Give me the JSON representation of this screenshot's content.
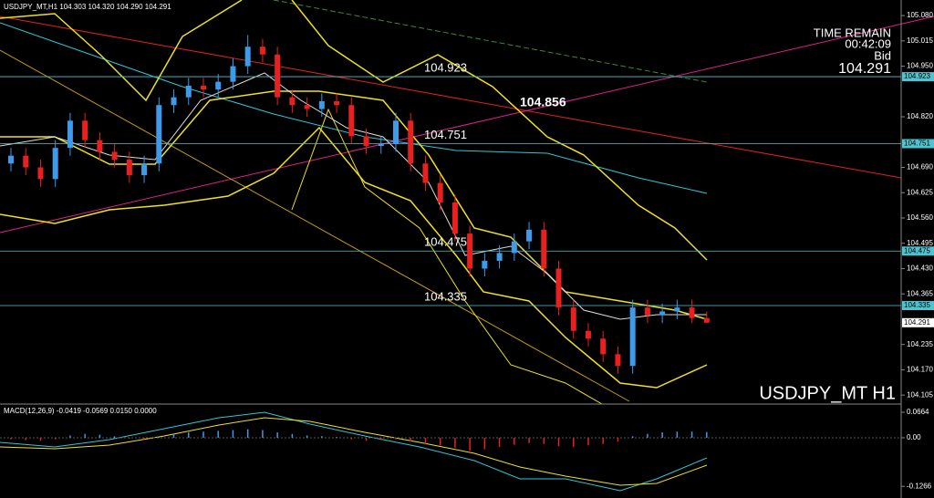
{
  "chart_data": [
    {
      "type": "candlestick",
      "title": "USDJPY_MT,H1  104.303 104.320 104.290 104.291",
      "time_remain_label": "TIME REMAIN",
      "time_remain": "00:42:09",
      "bid_label": "Bid",
      "bid": 104.291,
      "symbol_label": "USDJPY_MT H1",
      "annotation": 104.856,
      "levels": [
        104.923,
        104.751,
        104.475,
        104.335
      ],
      "up_color": "#3d9be9",
      "down_color": "#e8201f",
      "level_color": "#4fc3cf",
      "open": [
        104.7,
        104.72,
        104.69,
        104.66,
        104.74,
        104.81,
        104.76,
        104.73,
        104.71,
        104.67,
        104.7,
        104.85,
        104.87,
        104.9,
        104.89,
        104.91,
        104.95,
        105.0,
        104.98,
        104.87,
        104.85,
        104.84,
        104.86,
        104.85,
        104.77,
        104.745,
        104.75,
        104.81,
        104.7,
        104.65,
        104.6,
        104.52,
        104.43,
        104.45,
        104.47,
        104.5,
        104.53,
        104.43,
        104.33,
        104.27,
        104.25,
        104.21,
        104.18,
        104.33,
        104.31,
        104.32,
        104.33,
        104.303
      ],
      "high": [
        104.74,
        104.74,
        104.71,
        104.76,
        104.83,
        104.83,
        104.78,
        104.75,
        104.73,
        104.72,
        104.87,
        104.89,
        104.92,
        104.92,
        104.93,
        104.97,
        105.03,
        105.02,
        105.0,
        104.89,
        104.87,
        104.88,
        104.88,
        104.87,
        104.79,
        104.77,
        104.83,
        104.83,
        104.72,
        104.67,
        104.62,
        104.54,
        104.47,
        104.49,
        104.52,
        104.55,
        104.55,
        104.45,
        104.35,
        104.29,
        104.27,
        104.23,
        104.35,
        104.35,
        104.34,
        104.35,
        104.35,
        104.32
      ],
      "low": [
        104.68,
        104.67,
        104.64,
        104.64,
        104.72,
        104.74,
        104.71,
        104.69,
        104.65,
        104.65,
        104.68,
        104.83,
        104.85,
        104.87,
        104.87,
        104.89,
        104.93,
        104.96,
        104.85,
        104.83,
        104.82,
        104.82,
        104.83,
        104.75,
        104.725,
        104.725,
        104.73,
        104.68,
        104.63,
        104.58,
        104.5,
        104.41,
        104.41,
        104.43,
        104.45,
        104.48,
        104.41,
        104.31,
        104.25,
        104.23,
        104.19,
        104.16,
        104.16,
        104.29,
        104.29,
        104.3,
        104.29,
        104.29
      ],
      "close": [
        104.72,
        104.69,
        104.66,
        104.74,
        104.81,
        104.76,
        104.73,
        104.71,
        104.67,
        104.7,
        104.85,
        104.87,
        104.9,
        104.89,
        104.91,
        104.95,
        105.0,
        104.98,
        104.87,
        104.85,
        104.84,
        104.86,
        104.85,
        104.77,
        104.745,
        104.75,
        104.81,
        104.7,
        104.65,
        104.6,
        104.52,
        104.43,
        104.45,
        104.47,
        104.5,
        104.53,
        104.43,
        104.33,
        104.27,
        104.25,
        104.21,
        104.18,
        104.33,
        104.31,
        104.32,
        104.33,
        104.303,
        104.291
      ],
      "ylim": [
        104.082,
        105.12
      ],
      "yticks": [
        {
          "value": 105.08,
          "label": "105.080"
        },
        {
          "value": 105.015,
          "label": "105.015"
        },
        {
          "value": 104.95,
          "label": "104.950"
        },
        {
          "value": 104.82,
          "label": "104.820"
        },
        {
          "value": 104.69,
          "label": "104.690"
        },
        104.625,
        {
          "value": 104.56,
          "label": "104.560"
        },
        104.495,
        {
          "value": 104.43,
          "label": "104.430"
        },
        104.365,
        104.235,
        {
          "value": 104.17,
          "label": "104.170"
        },
        104.105
      ]
    },
    {
      "type": "bar",
      "title": "MACD(12,26,9) -0.0419 -0.0569 0.0150 0.0000",
      "up_color": "#3d9be9",
      "down_color": "#e8201f",
      "values": [
        -0.004,
        -0.006,
        -0.008,
        -0.004,
        0.006,
        0.01,
        0.008,
        0.004,
        -0.002,
        -0.004,
        0.004,
        0.01,
        0.014,
        0.016,
        0.018,
        0.02,
        0.022,
        0.02,
        0.014,
        0.01,
        0.006,
        0.004,
        0.002,
        -0.004,
        -0.008,
        -0.006,
        -0.004,
        -0.01,
        -0.016,
        -0.02,
        -0.026,
        -0.034,
        -0.03,
        -0.024,
        -0.018,
        -0.014,
        -0.016,
        -0.022,
        -0.024,
        -0.02,
        -0.016,
        -0.01,
        0.004,
        0.01,
        0.014,
        0.016,
        0.016,
        0.015
      ],
      "ylim": [
        0.0831,
        -0.157
      ],
      "yticks": [
        0.0664,
        {
          "value": 0,
          "label": "0.00"
        },
        -0.1266
      ]
    }
  ]
}
